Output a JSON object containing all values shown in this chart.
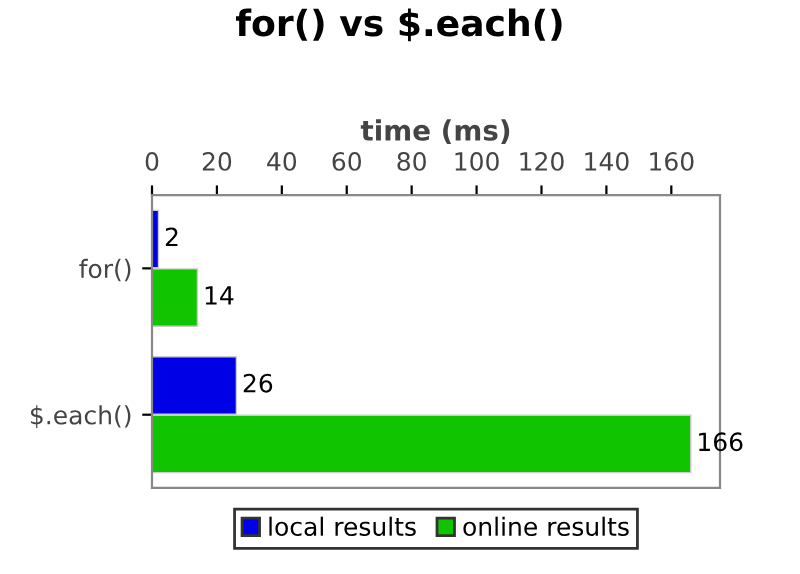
{
  "chart_data": {
    "type": "bar",
    "orientation": "horizontal",
    "title": "for() vs $.each()",
    "xlabel": "time (ms)",
    "categories": [
      "for()",
      "$.each()"
    ],
    "series": [
      {
        "name": "local results",
        "color": "#0000e6",
        "values": [
          2,
          26
        ]
      },
      {
        "name": "online results",
        "color": "#11c400",
        "values": [
          14,
          166
        ]
      }
    ],
    "xlim": [
      0,
      175
    ],
    "xticks": [
      0,
      20,
      40,
      60,
      80,
      100,
      120,
      140,
      160
    ],
    "data_labels": true,
    "legend": "bottom",
    "grid": false
  }
}
